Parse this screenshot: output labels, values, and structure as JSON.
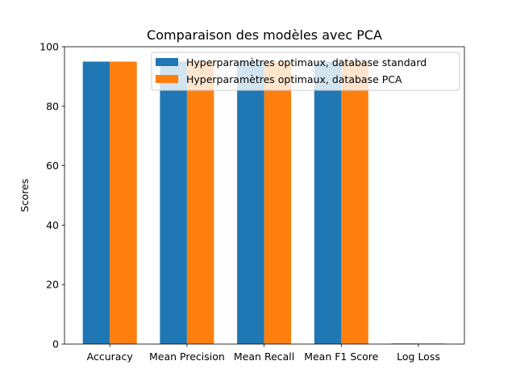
{
  "chart_data": {
    "type": "bar",
    "title": "Comparaison des modèles avec PCA",
    "xlabel": "",
    "ylabel": "Scores",
    "categories": [
      "Accuracy",
      "Mean Precision",
      "Mean Recall",
      "Mean F1 Score",
      "Log Loss"
    ],
    "series": [
      {
        "name": "Hyperparamètres optimaux, database standard",
        "color": "#1f77b4",
        "values": [
          95.0,
          95.0,
          95.0,
          95.0,
          0.2
        ]
      },
      {
        "name": "Hyperparamètres optimaux, database PCA",
        "color": "#ff7f0e",
        "values": [
          95.0,
          95.0,
          95.0,
          95.0,
          0.2
        ]
      }
    ],
    "ylim": [
      0,
      100
    ],
    "yticks": [
      0,
      20,
      40,
      60,
      80,
      100
    ],
    "grid": false,
    "legend_position": "top-right"
  }
}
